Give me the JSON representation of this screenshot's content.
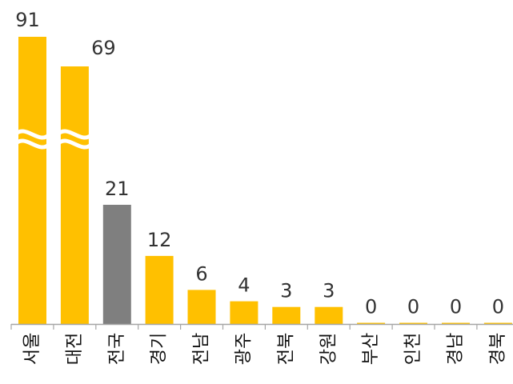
{
  "chart_data": {
    "type": "bar",
    "categories": [
      "서울",
      "대전",
      "전국",
      "경기",
      "전남",
      "광주",
      "전북",
      "강원",
      "부산",
      "인천",
      "경남",
      "경북"
    ],
    "values": [
      91,
      69,
      21,
      12,
      6,
      4,
      3,
      3,
      0,
      0,
      0,
      0
    ],
    "value_labels": [
      "91",
      "69",
      "21",
      "12",
      "6",
      "4",
      "3",
      "3",
      "0",
      "0",
      "0",
      "0"
    ],
    "broken_axis_bars": [
      "서울",
      "대전"
    ],
    "highlight_category": "전국",
    "colors": {
      "bar": "#FFC000",
      "highlight": "#7F7F7F",
      "axis": "#A6A6A6"
    },
    "title": "",
    "xlabel": "",
    "ylabel": "",
    "grid": false,
    "legend": "none"
  }
}
